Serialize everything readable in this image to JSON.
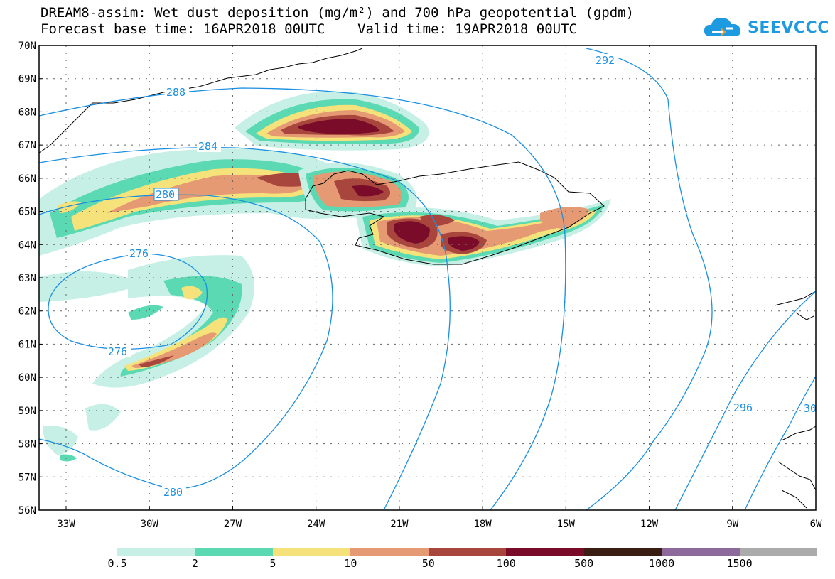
{
  "title": {
    "line1": "DREAM8-assim: Wet dust deposition (mg/m²) and 700 hPa geopotential (gpdm)",
    "line2": "Forecast base time: 16APR2018 00UTC    Valid time: 19APR2018 00UTC"
  },
  "logo": {
    "text": "SEEVCCC",
    "icon": "cloud-icon",
    "color": "#1E9BE0"
  },
  "map": {
    "lon_labels": [
      "33W",
      "30W",
      "27W",
      "24W",
      "21W",
      "18W",
      "15W",
      "12W",
      "9W",
      "6W"
    ],
    "lat_labels": [
      "70N",
      "69N",
      "68N",
      "67N",
      "66N",
      "65N",
      "64N",
      "63N",
      "62N",
      "61N",
      "60N",
      "59N",
      "58N",
      "57N",
      "56N"
    ],
    "contour_labels": [
      "292",
      "288",
      "284",
      "280",
      "276",
      "276",
      "280",
      "296",
      "30"
    ],
    "contour_color": "#1A8FE0"
  },
  "legend": {
    "labels": [
      "0.5",
      "2",
      "5",
      "10",
      "50",
      "100",
      "500",
      "1000",
      "1500"
    ],
    "colors": [
      "#C6F0E6",
      "#5AD9B2",
      "#F5E27A",
      "#E69A73",
      "#A8463E",
      "#7A0C2A",
      "#3A1E14",
      "#8E6A9C",
      "#ABABAB"
    ]
  }
}
